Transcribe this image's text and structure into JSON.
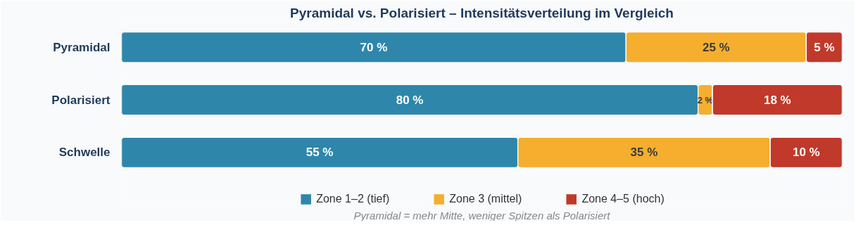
{
  "chart_data": {
    "type": "bar",
    "orientation": "horizontal",
    "stacked": true,
    "title": "Pyramidal vs. Polarisiert – Intensitätsverteilung im Vergleich",
    "categories": [
      "Pyramidal",
      "Polarisiert",
      "Schwelle"
    ],
    "series": [
      {
        "name": "Zone 1–2 (tief)",
        "color": "#2e86ab",
        "values": [
          70,
          80,
          55
        ],
        "value_labels": [
          "70 %",
          "80 %",
          "55 %"
        ]
      },
      {
        "name": "Zone 3 (mittel)",
        "color": "#f5ae2e",
        "values": [
          25,
          2,
          35
        ],
        "value_labels": [
          "25 %",
          "2 %",
          "35 %"
        ]
      },
      {
        "name": "Zone 4–5 (hoch)",
        "color": "#c0392b",
        "values": [
          5,
          18,
          10
        ],
        "value_labels": [
          "5 %",
          "18 %",
          "10 %"
        ]
      }
    ],
    "legend": "bottom",
    "grid": false,
    "annotations": [
      "Pyramidal = mehr Mitte, weniger Spitzen als Polarisiert"
    ]
  }
}
